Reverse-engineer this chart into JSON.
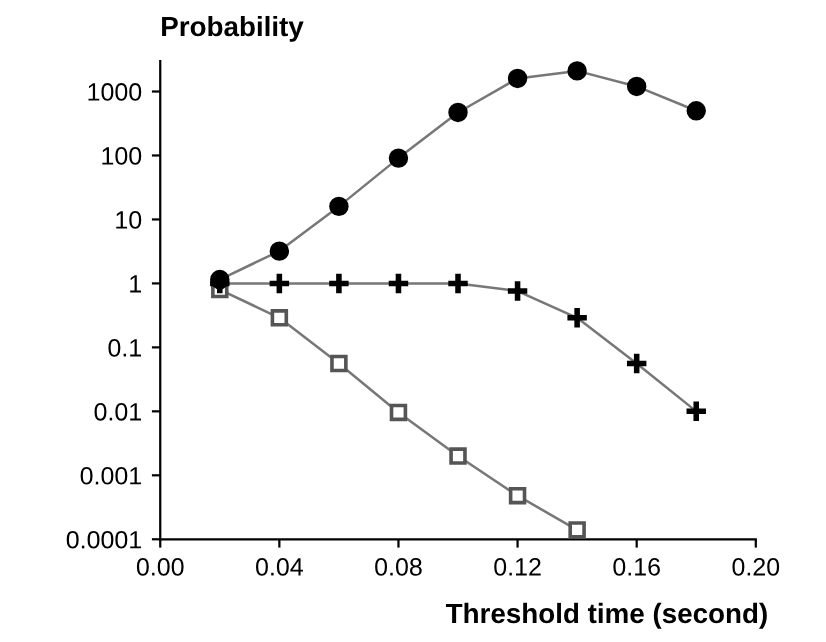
{
  "chart_data": {
    "type": "line",
    "xlabel": "Threshold time (second)",
    "ylabel": "Probability",
    "log": "y",
    "grid": false,
    "line_style": "solid",
    "xlim": [
      0,
      0.2
    ],
    "xticks": [
      {
        "value": 0,
        "label": "0.00"
      },
      0.04,
      0.08,
      0.12,
      0.16,
      {
        "value": 0.2,
        "label": "0.20"
      }
    ],
    "ylim": [
      0.0001,
      3000
    ],
    "yticks": [
      0.0001,
      0.001,
      0.01,
      0.1,
      1,
      10,
      100,
      1000
    ],
    "x": [
      0.02,
      0.04,
      0.06,
      0.08,
      0.1,
      0.12,
      0.14,
      0.16,
      0.18
    ],
    "series": [
      {
        "color": "#000000",
        "marker": "circle",
        "values": [
          1.15,
          3.2,
          16,
          91,
          470,
          1600,
          2100,
          1200,
          500
        ]
      },
      {
        "color": "#000000",
        "marker": "cross",
        "values": [
          1,
          1,
          1,
          1,
          1,
          0.76,
          0.29,
          0.056,
          0.01
        ]
      },
      {
        "color": "#555555",
        "marker": "square",
        "values": [
          0.8,
          0.29,
          0.056,
          0.0096,
          0.002,
          0.00048,
          0.00014,
          null,
          null
        ]
      }
    ]
  }
}
